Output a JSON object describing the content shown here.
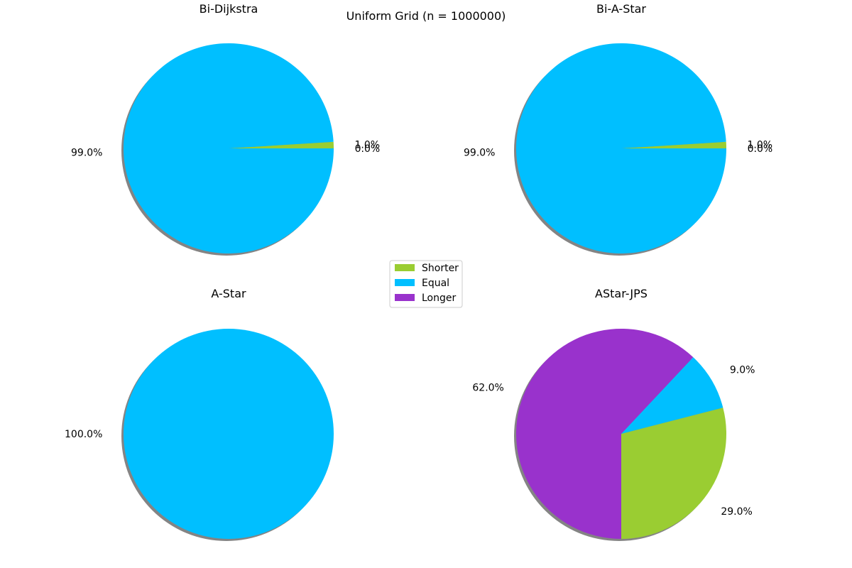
{
  "figure_title": "Uniform Grid (n = 1000000)",
  "legend": {
    "placement": "center",
    "items": [
      {
        "label": "Shorter",
        "color": "#9ACD32"
      },
      {
        "label": "Equal",
        "color": "#00BFFF"
      },
      {
        "label": "Longer",
        "color": "#9932CC"
      }
    ]
  },
  "chart_data": [
    {
      "type": "pie",
      "title": "Bi-Dijkstra",
      "categories": [
        "Shorter",
        "Equal",
        "Longer"
      ],
      "values": [
        1.0,
        99.0,
        0.0
      ],
      "labels": [
        "1.0%",
        "99.0%",
        "0.0%"
      ]
    },
    {
      "type": "pie",
      "title": "Bi-A-Star",
      "categories": [
        "Shorter",
        "Equal",
        "Longer"
      ],
      "values": [
        1.0,
        99.0,
        0.0
      ],
      "labels": [
        "1.0%",
        "99.0%",
        "0.0%"
      ]
    },
    {
      "type": "pie",
      "title": "A-Star",
      "categories": [
        "Shorter",
        "Equal",
        "Longer"
      ],
      "values": [
        0.0,
        100.0,
        0.0
      ],
      "labels": [
        "",
        "100.0%",
        ""
      ]
    },
    {
      "type": "pie",
      "title": "AStar-JPS",
      "categories": [
        "Shorter",
        "Equal",
        "Longer"
      ],
      "values": [
        29.0,
        9.0,
        62.0
      ],
      "labels": [
        "29.0%",
        "9.0%",
        "62.0%"
      ]
    }
  ]
}
